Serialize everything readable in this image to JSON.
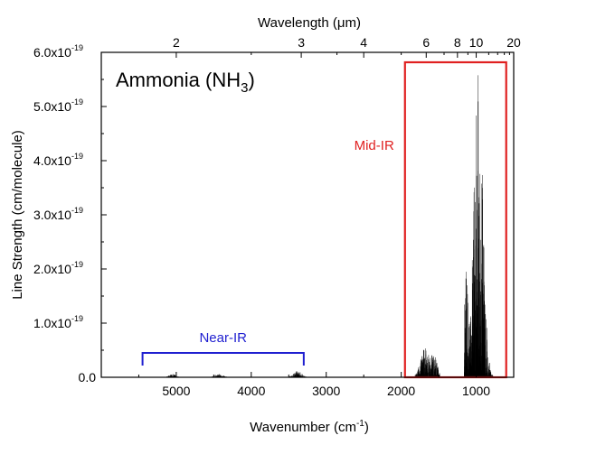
{
  "chart_data": {
    "type": "line",
    "title": "Ammonia (NH",
    "title_subscript": "3",
    "title_close": ")",
    "xlabel_main": "Wavenumber (cm",
    "xlabel_sup": "-1",
    "xlabel_close": ")",
    "top_xlabel": "Wavelength (μm)",
    "ylabel": "Line Strength (cm/molecule)",
    "xlim": [
      6000,
      500
    ],
    "ylim": [
      0,
      6e-19
    ],
    "x_reversed": true,
    "x_ticks": [
      {
        "value": 5000,
        "label": "5000"
      },
      {
        "value": 4000,
        "label": "4000"
      },
      {
        "value": 3000,
        "label": "3000"
      },
      {
        "value": 2000,
        "label": "2000"
      },
      {
        "value": 1000,
        "label": "1000"
      }
    ],
    "y_ticks": [
      {
        "value": 0,
        "label": "0.0"
      },
      {
        "value": 1e-19,
        "label": "1.0x10",
        "exp": "-19"
      },
      {
        "value": 2e-19,
        "label": "2.0x10",
        "exp": "-19"
      },
      {
        "value": 3e-19,
        "label": "3.0x10",
        "exp": "-19"
      },
      {
        "value": 4e-19,
        "label": "4.0x10",
        "exp": "-19"
      },
      {
        "value": 5e-19,
        "label": "5.0x10",
        "exp": "-19"
      },
      {
        "value": 6e-19,
        "label": "6.0x10",
        "exp": "-19"
      }
    ],
    "top_ticks": [
      {
        "wavelength_um": 2,
        "label": "2"
      },
      {
        "wavelength_um": 3,
        "label": "3"
      },
      {
        "wavelength_um": 4,
        "label": "4"
      },
      {
        "wavelength_um": 6,
        "label": "6"
      },
      {
        "wavelength_um": 8,
        "label": "8"
      },
      {
        "wavelength_um": 10,
        "label": "10"
      },
      {
        "wavelength_um": 20,
        "label": "20"
      }
    ],
    "regions": [
      {
        "label": "Near-IR",
        "x_start": 5450,
        "x_end": 3300,
        "style": "bracket",
        "color": "#1f1fd0"
      },
      {
        "label": "Mid-IR",
        "x_start": 1950,
        "x_end": 600,
        "style": "box",
        "color": "#e02020"
      }
    ],
    "bands": [
      {
        "center": 5050,
        "width": 200,
        "peak": 6e-21
      },
      {
        "center": 4430,
        "width": 240,
        "peak": 6e-21
      },
      {
        "center": 3380,
        "width": 230,
        "peak": 1.2e-20
      },
      {
        "center": 1650,
        "width": 330,
        "peak": 6.8e-20
      },
      {
        "center": 950,
        "width": 420,
        "peak": 5.7e-19
      }
    ],
    "grid": false,
    "legend": "none",
    "line_color": "#000000"
  }
}
